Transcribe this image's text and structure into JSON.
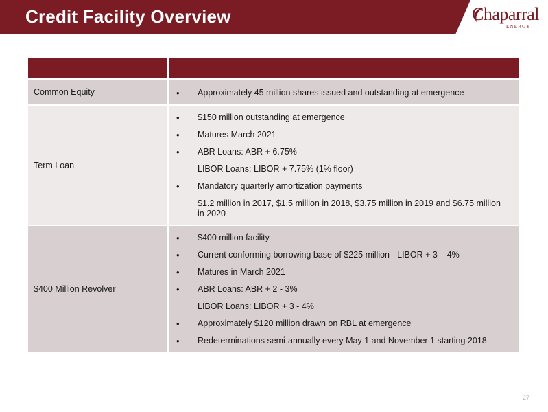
{
  "title": "Credit Facility Overview",
  "logo": {
    "name": "Chaparral",
    "sub": "ENERGY"
  },
  "page_number": "27",
  "rows": [
    {
      "label": "Common Equity",
      "items": [
        {
          "text": "Approximately 45 million shares issued and outstanding at emergence",
          "bullet": "•"
        }
      ]
    },
    {
      "label": "Term Loan",
      "items": [
        {
          "text": "$150 million outstanding at emergence",
          "bullet": "•"
        },
        {
          "text": "Matures March 2021",
          "bullet": "•"
        },
        {
          "text": "ABR Loans: ABR + 6.75%",
          "bullet": "•"
        },
        {
          "text": "LIBOR Loans: LIBOR + 7.75% (1% floor)",
          "bullet": ""
        },
        {
          "text": "Mandatory quarterly amortization payments",
          "bullet": "•"
        },
        {
          "text": "$1.2 million in 2017, $1.5 million in 2018, $3.75 million in 2019 and $6.75 million in 2020",
          "bullet": ""
        }
      ]
    },
    {
      "label": "$400 Million Revolver",
      "items": [
        {
          "text": "$400 million facility",
          "bullet": "•"
        },
        {
          "text": "Current conforming borrowing base of $225 million - LIBOR + 3 – 4%",
          "bullet": "•"
        },
        {
          "text": "Matures in March 2021",
          "bullet": "•"
        },
        {
          "text": "ABR Loans: ABR + 2 - 3%",
          "bullet": "•"
        },
        {
          "text": "LIBOR Loans: LIBOR + 3 - 4%",
          "bullet": ""
        },
        {
          "text": "Approximately $120 million drawn on RBL at emergence",
          "bullet": "•"
        },
        {
          "text": "Redeterminations semi-annually every May 1 and November 1 starting 2018",
          "bullet": "•"
        }
      ]
    }
  ]
}
